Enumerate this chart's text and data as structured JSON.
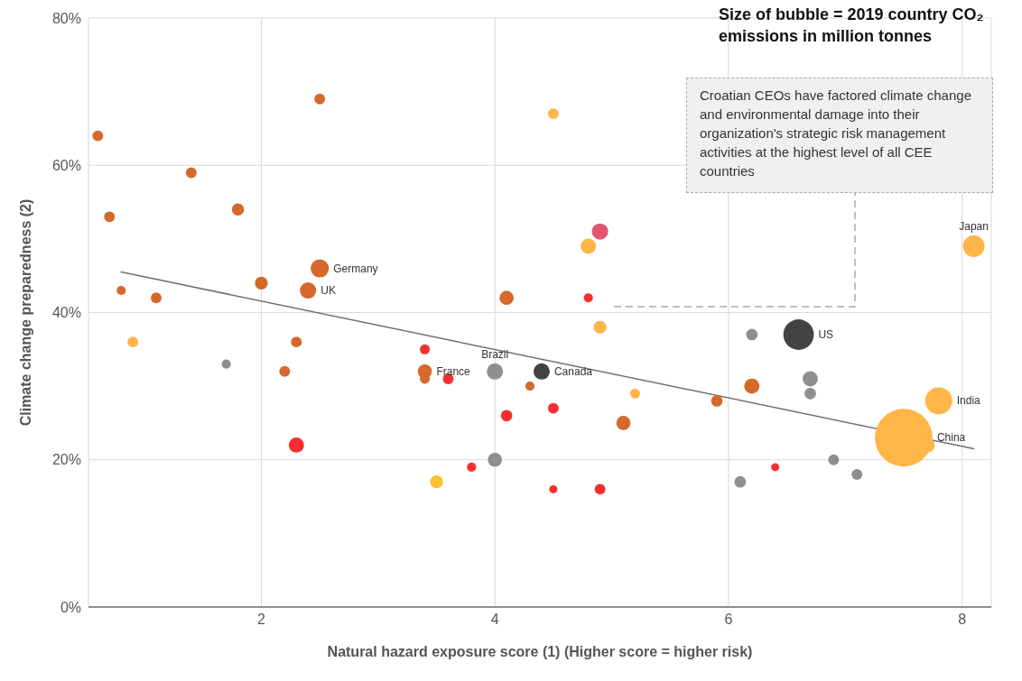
{
  "chart_data": {
    "type": "bubble",
    "xlabel": "Natural hazard exposure score (1) (Higher score = higher risk)",
    "ylabel": "Climate change preparedness (2)",
    "xlim": [
      0.52,
      8.25
    ],
    "xticks": [
      2,
      4,
      6,
      8
    ],
    "ylim": [
      0,
      80
    ],
    "yticks": [
      {
        "value": 0,
        "label": "0%"
      },
      {
        "value": 20,
        "label": "20%"
      },
      {
        "value": 40,
        "label": "40%"
      },
      {
        "value": 60,
        "label": "60%"
      },
      {
        "value": 80,
        "label": "80%"
      }
    ],
    "grid": true,
    "series": [
      {
        "color": "#d4692a",
        "x": [
          0.6,
          0.7,
          0.8,
          1.1,
          1.4,
          1.8,
          2.0,
          2.2,
          2.3,
          2.4,
          2.5,
          2.5,
          3.4,
          3.4,
          4.1,
          4.3,
          5.1,
          5.9,
          6.2
        ],
        "values": [
          64,
          53,
          43,
          42,
          59,
          54,
          44,
          32,
          36,
          43,
          69,
          46,
          32,
          31,
          42,
          30,
          25,
          28,
          30
        ],
        "sizes": [
          0.035,
          0.035,
          0.025,
          0.035,
          0.035,
          0.045,
          0.05,
          0.035,
          0.035,
          0.08,
          0.035,
          0.1,
          0.06,
          0.03,
          0.06,
          0.025,
          0.06,
          0.04,
          0.07
        ],
        "value_labels": [
          null,
          null,
          null,
          null,
          null,
          null,
          null,
          null,
          null,
          "UK",
          null,
          "Germany",
          "France",
          null,
          null,
          null,
          null,
          null,
          null
        ]
      },
      {
        "color": "#ffb547",
        "x": [
          0.9,
          4.5,
          4.8,
          4.9,
          5.2,
          7.5,
          7.7,
          7.8,
          8.1
        ],
        "values": [
          36,
          67,
          49,
          38,
          29,
          23,
          22,
          28,
          49
        ],
        "sizes": [
          0.035,
          0.035,
          0.07,
          0.05,
          0.03,
          1,
          0.07,
          0.22,
          0.14
        ],
        "value_labels": [
          null,
          null,
          null,
          null,
          null,
          "China",
          null,
          "India",
          "Japan"
        ]
      },
      {
        "color": "#f42f2f",
        "x": [
          2.3,
          3.4,
          3.6,
          3.8,
          4.1,
          4.5,
          4.5,
          4.8,
          4.9,
          6.4
        ],
        "values": [
          22,
          35,
          31,
          19,
          26,
          27,
          16,
          42,
          16,
          19
        ],
        "sizes": [
          0.07,
          0.03,
          0.035,
          0.025,
          0.04,
          0.035,
          0.02,
          0.025,
          0.035,
          0.02
        ]
      },
      {
        "color": "#8f8f8f",
        "x": [
          1.7,
          4.0,
          4.0,
          6.1,
          6.2,
          6.7,
          6.7,
          6.9,
          7.1
        ],
        "values": [
          33,
          32,
          20,
          17,
          37,
          31,
          29,
          20,
          18
        ],
        "sizes": [
          0.025,
          0.08,
          0.06,
          0.04,
          0.04,
          0.07,
          0.04,
          0.035,
          0.035
        ],
        "value_labels": [
          null,
          "Brazil",
          null,
          null,
          null,
          null,
          null,
          null,
          null
        ]
      },
      {
        "color": "#424242",
        "x": [
          4.4,
          6.6
        ],
        "values": [
          32,
          37
        ],
        "sizes": [
          0.08,
          0.28
        ],
        "value_labels": [
          "Canada",
          "US"
        ]
      },
      {
        "color": "#e0566e",
        "x": [
          4.9
        ],
        "values": [
          51
        ],
        "sizes": [
          0.08
        ]
      },
      {
        "color": "#fbc02d",
        "x": [
          3.5
        ],
        "values": [
          17
        ],
        "sizes": [
          0.05
        ]
      },
      {
        "type": "line",
        "color": "#707070",
        "x": [
          0.8,
          8.1
        ],
        "values": [
          45.5,
          21.5
        ]
      }
    ],
    "annotations": [
      "Size of bubble = 2019 country CO₂ emissions in million tonnes",
      "Croatian CEOs have factored climate change and environmental damage into their organization's strategic risk management activities at the highest level of all CEE countries"
    ]
  }
}
